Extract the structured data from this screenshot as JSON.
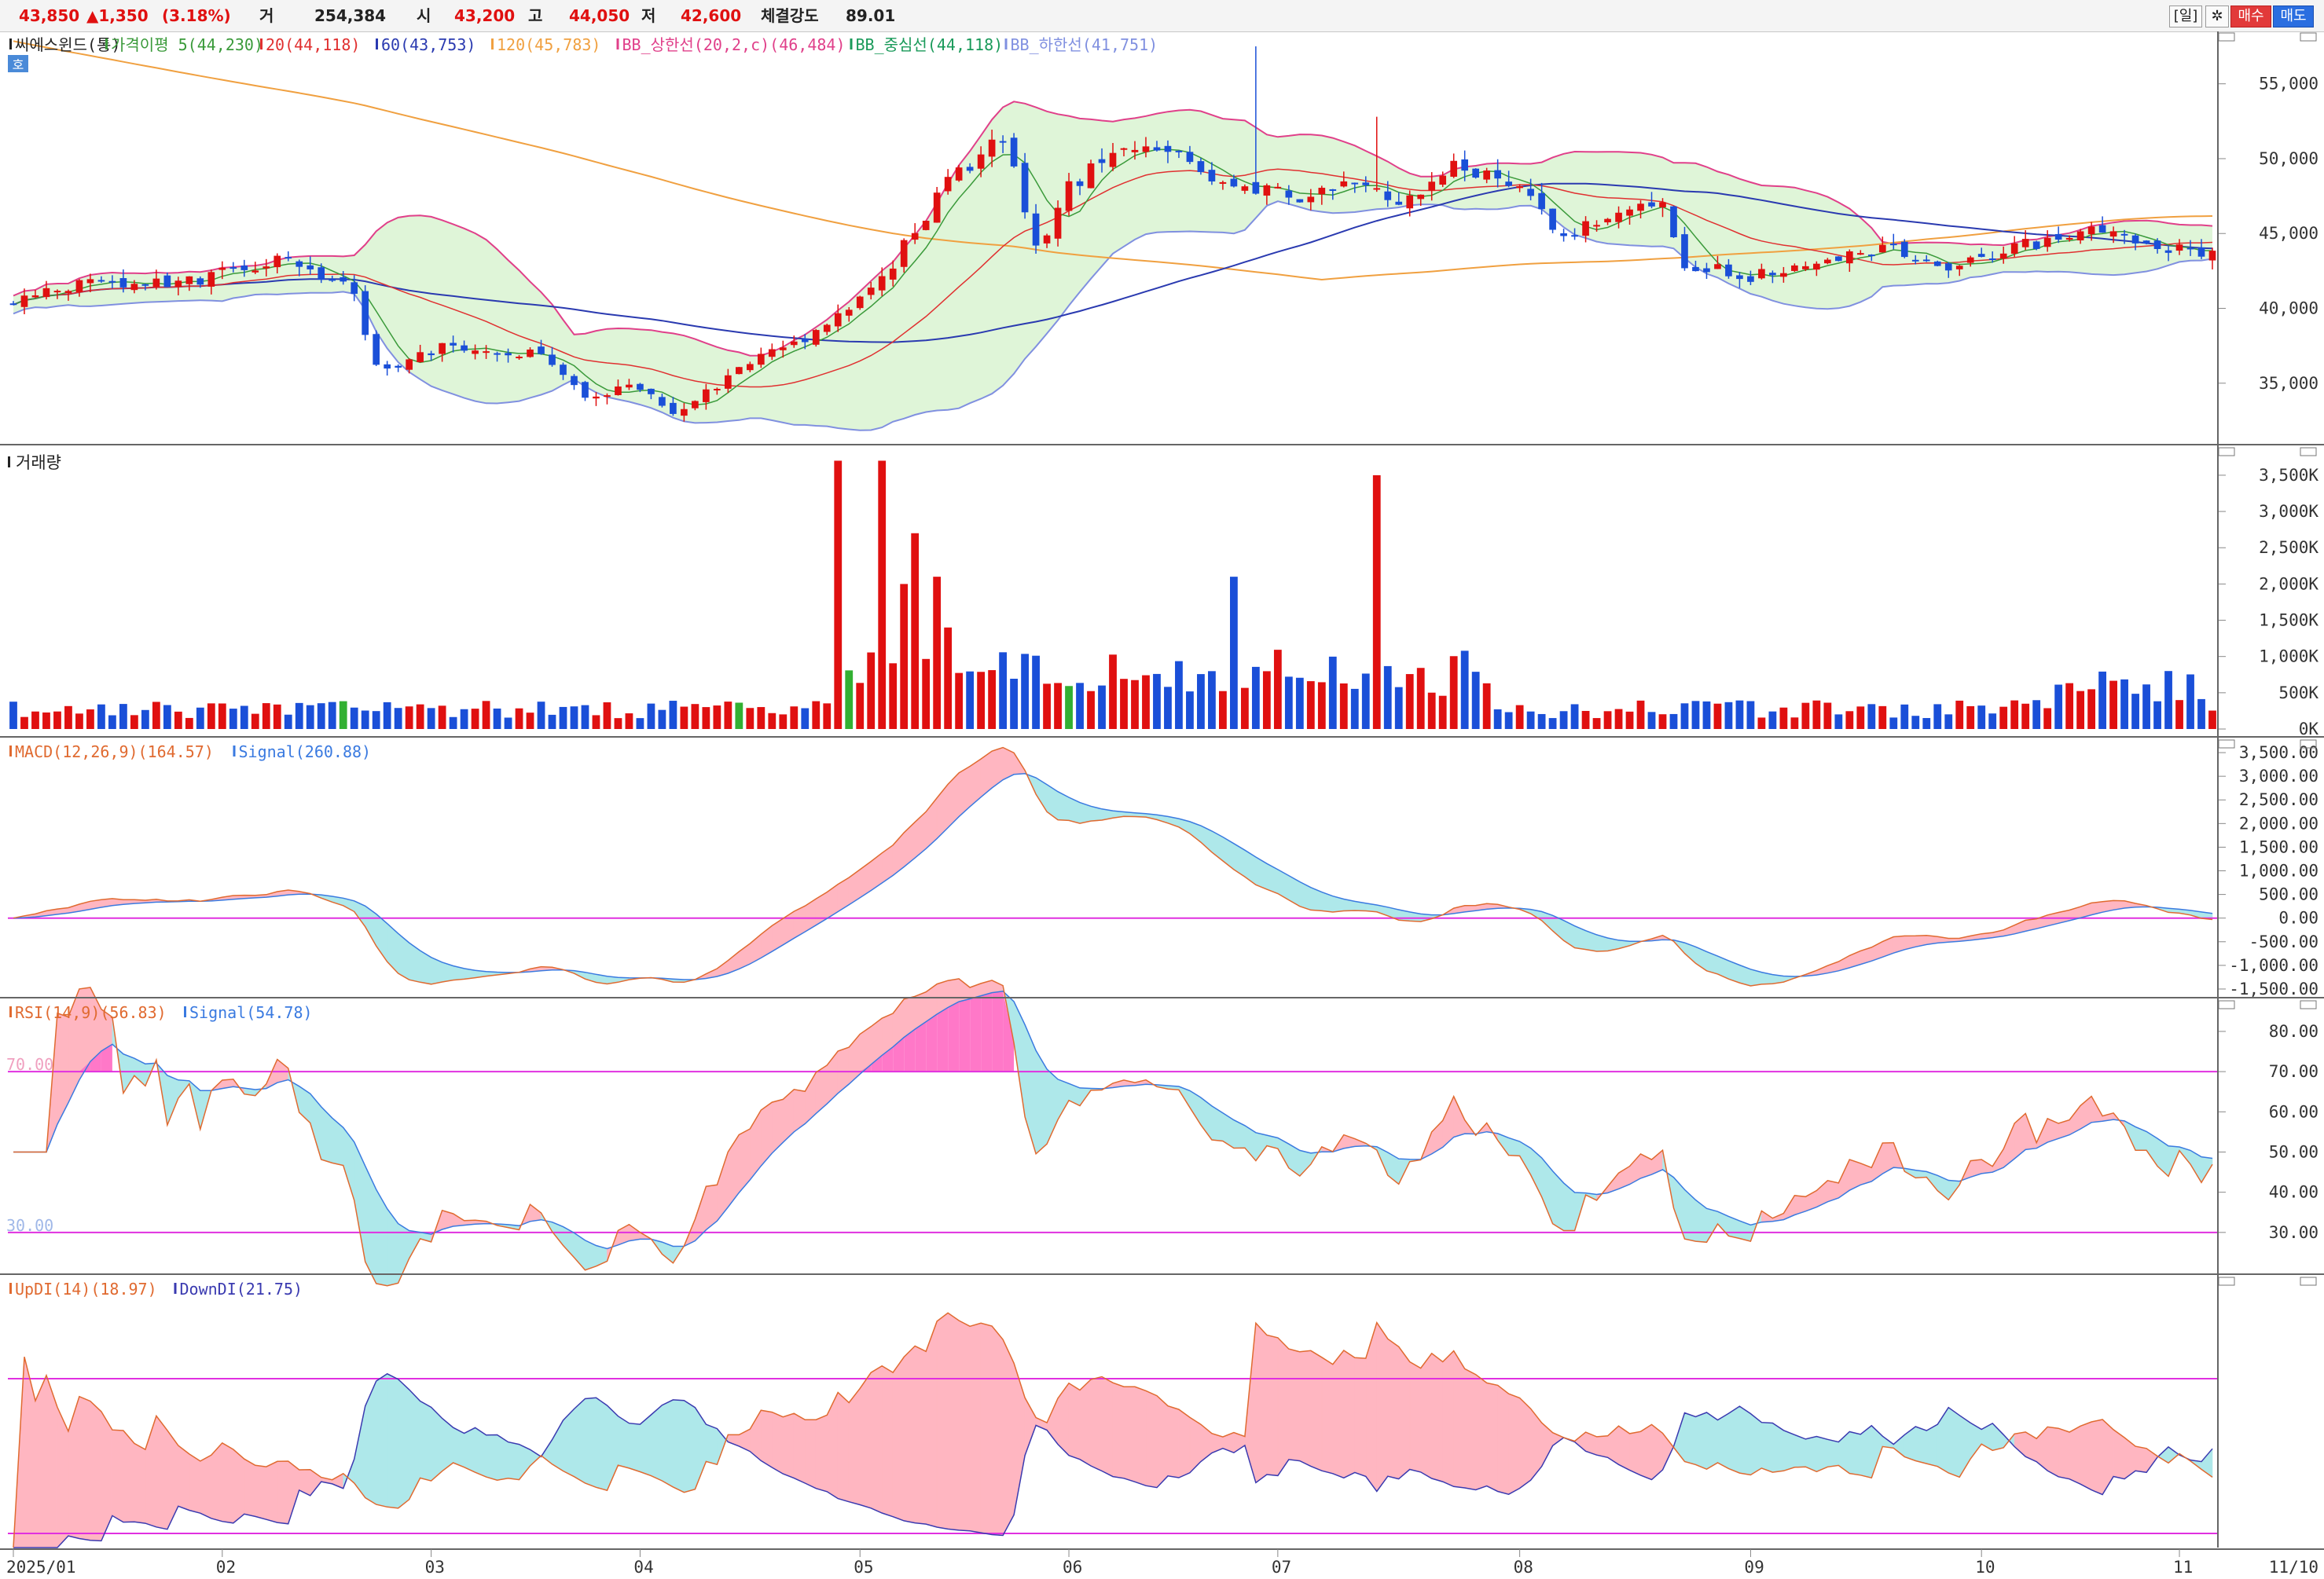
{
  "quote": {
    "price": "43,850",
    "change": "▲1,350",
    "change_pct": "(3.18%)",
    "volume_label": "거",
    "volume": "254,384",
    "open_label": "시",
    "open": "43,200",
    "high_label": "고",
    "high": "44,050",
    "low_label": "저",
    "low": "42,600",
    "strength_label": "체결강도",
    "strength": "89.01"
  },
  "toolbar": {
    "period_label": "[일]",
    "settings_icon": "gear-icon",
    "buy_label": "매수",
    "sell_label": "매도"
  },
  "colors": {
    "up_candle": "#e01010",
    "down_candle": "#1a4fd8",
    "flat_volume": "#32b032",
    "ma5": "#3a9a3a",
    "ma20": "#e03030",
    "ma60": "#2a3ab0",
    "ma120": "#f0a040",
    "bb_upper": "#e0408a",
    "bb_mid": "#1a9a5a",
    "bb_lower": "#8090e0",
    "bb_fill": "#dff5d8",
    "macd": "#e06a30",
    "macd_signal": "#3a7ae0",
    "up_fill": "#ffb6c1",
    "down_fill": "#aee8ea",
    "ref_line": "#e030e0",
    "overbought_fill": "#ff78c8"
  },
  "price_panel": {
    "legend": [
      {
        "text": "씨에스윈드(통)",
        "color": "#222222"
      },
      {
        "text": "가격이평 5(44,230)",
        "color": "#3a9a3a"
      },
      {
        "text": "20(44,118)",
        "color": "#e03030"
      },
      {
        "text": "60(43,753)",
        "color": "#2a3ab0"
      },
      {
        "text": "120(45,783)",
        "color": "#f0a040"
      },
      {
        "text": "BB_상한선(20,2,c)(46,484)",
        "color": "#e0408a"
      },
      {
        "text": "BB_중심선(44,118)",
        "color": "#1a9a5a"
      },
      {
        "text": "BB_하한선(41,751)",
        "color": "#8090e0"
      }
    ],
    "badge": "호",
    "y_ticks": [
      "55,000",
      "50,000",
      "45,000",
      "40,000",
      "35,000"
    ],
    "y_tick_values": [
      55000,
      50000,
      45000,
      40000,
      35000
    ]
  },
  "volume_panel": {
    "title": "거래량",
    "y_ticks": [
      "3,500K",
      "3,000K",
      "2,500K",
      "2,000K",
      "1,500K",
      "1,000K",
      "500K",
      "0K"
    ],
    "y_tick_values": [
      3500,
      3000,
      2500,
      2000,
      1500,
      1000,
      500,
      0
    ]
  },
  "macd_panel": {
    "legend": [
      {
        "text": "MACD(12,26,9)(164.57)",
        "color": "#e06a30"
      },
      {
        "text": "Signal(260.88)",
        "color": "#3a7ae0"
      }
    ],
    "y_ticks": [
      "3,500.00",
      "3,000.00",
      "2,500.00",
      "2,000.00",
      "1,500.00",
      "1,000.00",
      "500.00",
      "0.00",
      "-500.00",
      "-1,000.00",
      "-1,500.00"
    ],
    "y_tick_values": [
      3500,
      3000,
      2500,
      2000,
      1500,
      1000,
      500,
      0,
      -500,
      -1000,
      -1500
    ]
  },
  "rsi_panel": {
    "legend": [
      {
        "text": "RSI(14,9)(56.83)",
        "color": "#e06a30"
      },
      {
        "text": "Signal(54.78)",
        "color": "#3a7ae0"
      }
    ],
    "level_high": "70.00",
    "level_low": "30.00",
    "y_ticks": [
      "80.00",
      "70.00",
      "60.00",
      "50.00",
      "40.00",
      "30.00"
    ],
    "y_tick_values": [
      80,
      70,
      60,
      50,
      40,
      30
    ]
  },
  "dmi_panel": {
    "legend": [
      {
        "text": "UpDI(14)(18.97)",
        "color": "#e06a30"
      },
      {
        "text": "DownDI(21.75)",
        "color": "#3a3ab0"
      }
    ]
  },
  "x_axis": {
    "labels": [
      "2025/01",
      "02",
      "03",
      "04",
      "05",
      "06",
      "07",
      "08",
      "09",
      "10",
      "11"
    ],
    "right_label": "11/10"
  },
  "chart_data": {
    "type": "candlestick",
    "ticker": "씨에스윈드(통)",
    "month_start_index": [
      0,
      19,
      38,
      57,
      77,
      96,
      115,
      137,
      158,
      179,
      197
    ],
    "months": [
      "2025/01",
      "02",
      "03",
      "04",
      "05",
      "06",
      "07",
      "08",
      "09",
      "10",
      "11"
    ],
    "close_anchors": [
      [
        0,
        40500
      ],
      [
        8,
        42000
      ],
      [
        15,
        41500
      ],
      [
        25,
        43500
      ],
      [
        31,
        41000
      ],
      [
        33,
        36000
      ],
      [
        40,
        37500
      ],
      [
        48,
        37000
      ],
      [
        52,
        34000
      ],
      [
        56,
        35000
      ],
      [
        60,
        33000
      ],
      [
        65,
        35500
      ],
      [
        72,
        38000
      ],
      [
        79,
        42000
      ],
      [
        85,
        48500
      ],
      [
        90,
        51500
      ],
      [
        93,
        44000
      ],
      [
        96,
        48000
      ],
      [
        101,
        51000
      ],
      [
        106,
        50000
      ],
      [
        111,
        48000
      ],
      [
        118,
        47500
      ],
      [
        121,
        48500
      ],
      [
        126,
        47000
      ],
      [
        131,
        49500
      ],
      [
        137,
        48000
      ],
      [
        141,
        45000
      ],
      [
        146,
        46500
      ],
      [
        150,
        47000
      ],
      [
        152,
        43000
      ],
      [
        158,
        42000
      ],
      [
        164,
        43000
      ],
      [
        170,
        44000
      ],
      [
        176,
        43000
      ],
      [
        182,
        44000
      ],
      [
        190,
        45500
      ],
      [
        195,
        44000
      ],
      [
        200,
        43850
      ]
    ],
    "ma20_last": 44118,
    "ma60_last": 43753,
    "ma120_last": 45783,
    "bb_upper_last": 46484,
    "bb_mid_last": 44118,
    "bb_lower_last": 41751,
    "ma5_last": 44230,
    "volume_spikes_k": {
      "75": 3700,
      "79": 3700,
      "82": 2700,
      "81": 2000,
      "84": 2100,
      "124": 3500,
      "111": 2100,
      "85": 1400
    },
    "macd_last": 164.57,
    "macd_signal_last": 260.88,
    "rsi_last": 56.83,
    "rsi_signal_last": 54.78,
    "updi_last": 18.97,
    "downdi_last": 21.75,
    "last_price": 43850,
    "change": 1350,
    "change_pct": 3.18
  }
}
